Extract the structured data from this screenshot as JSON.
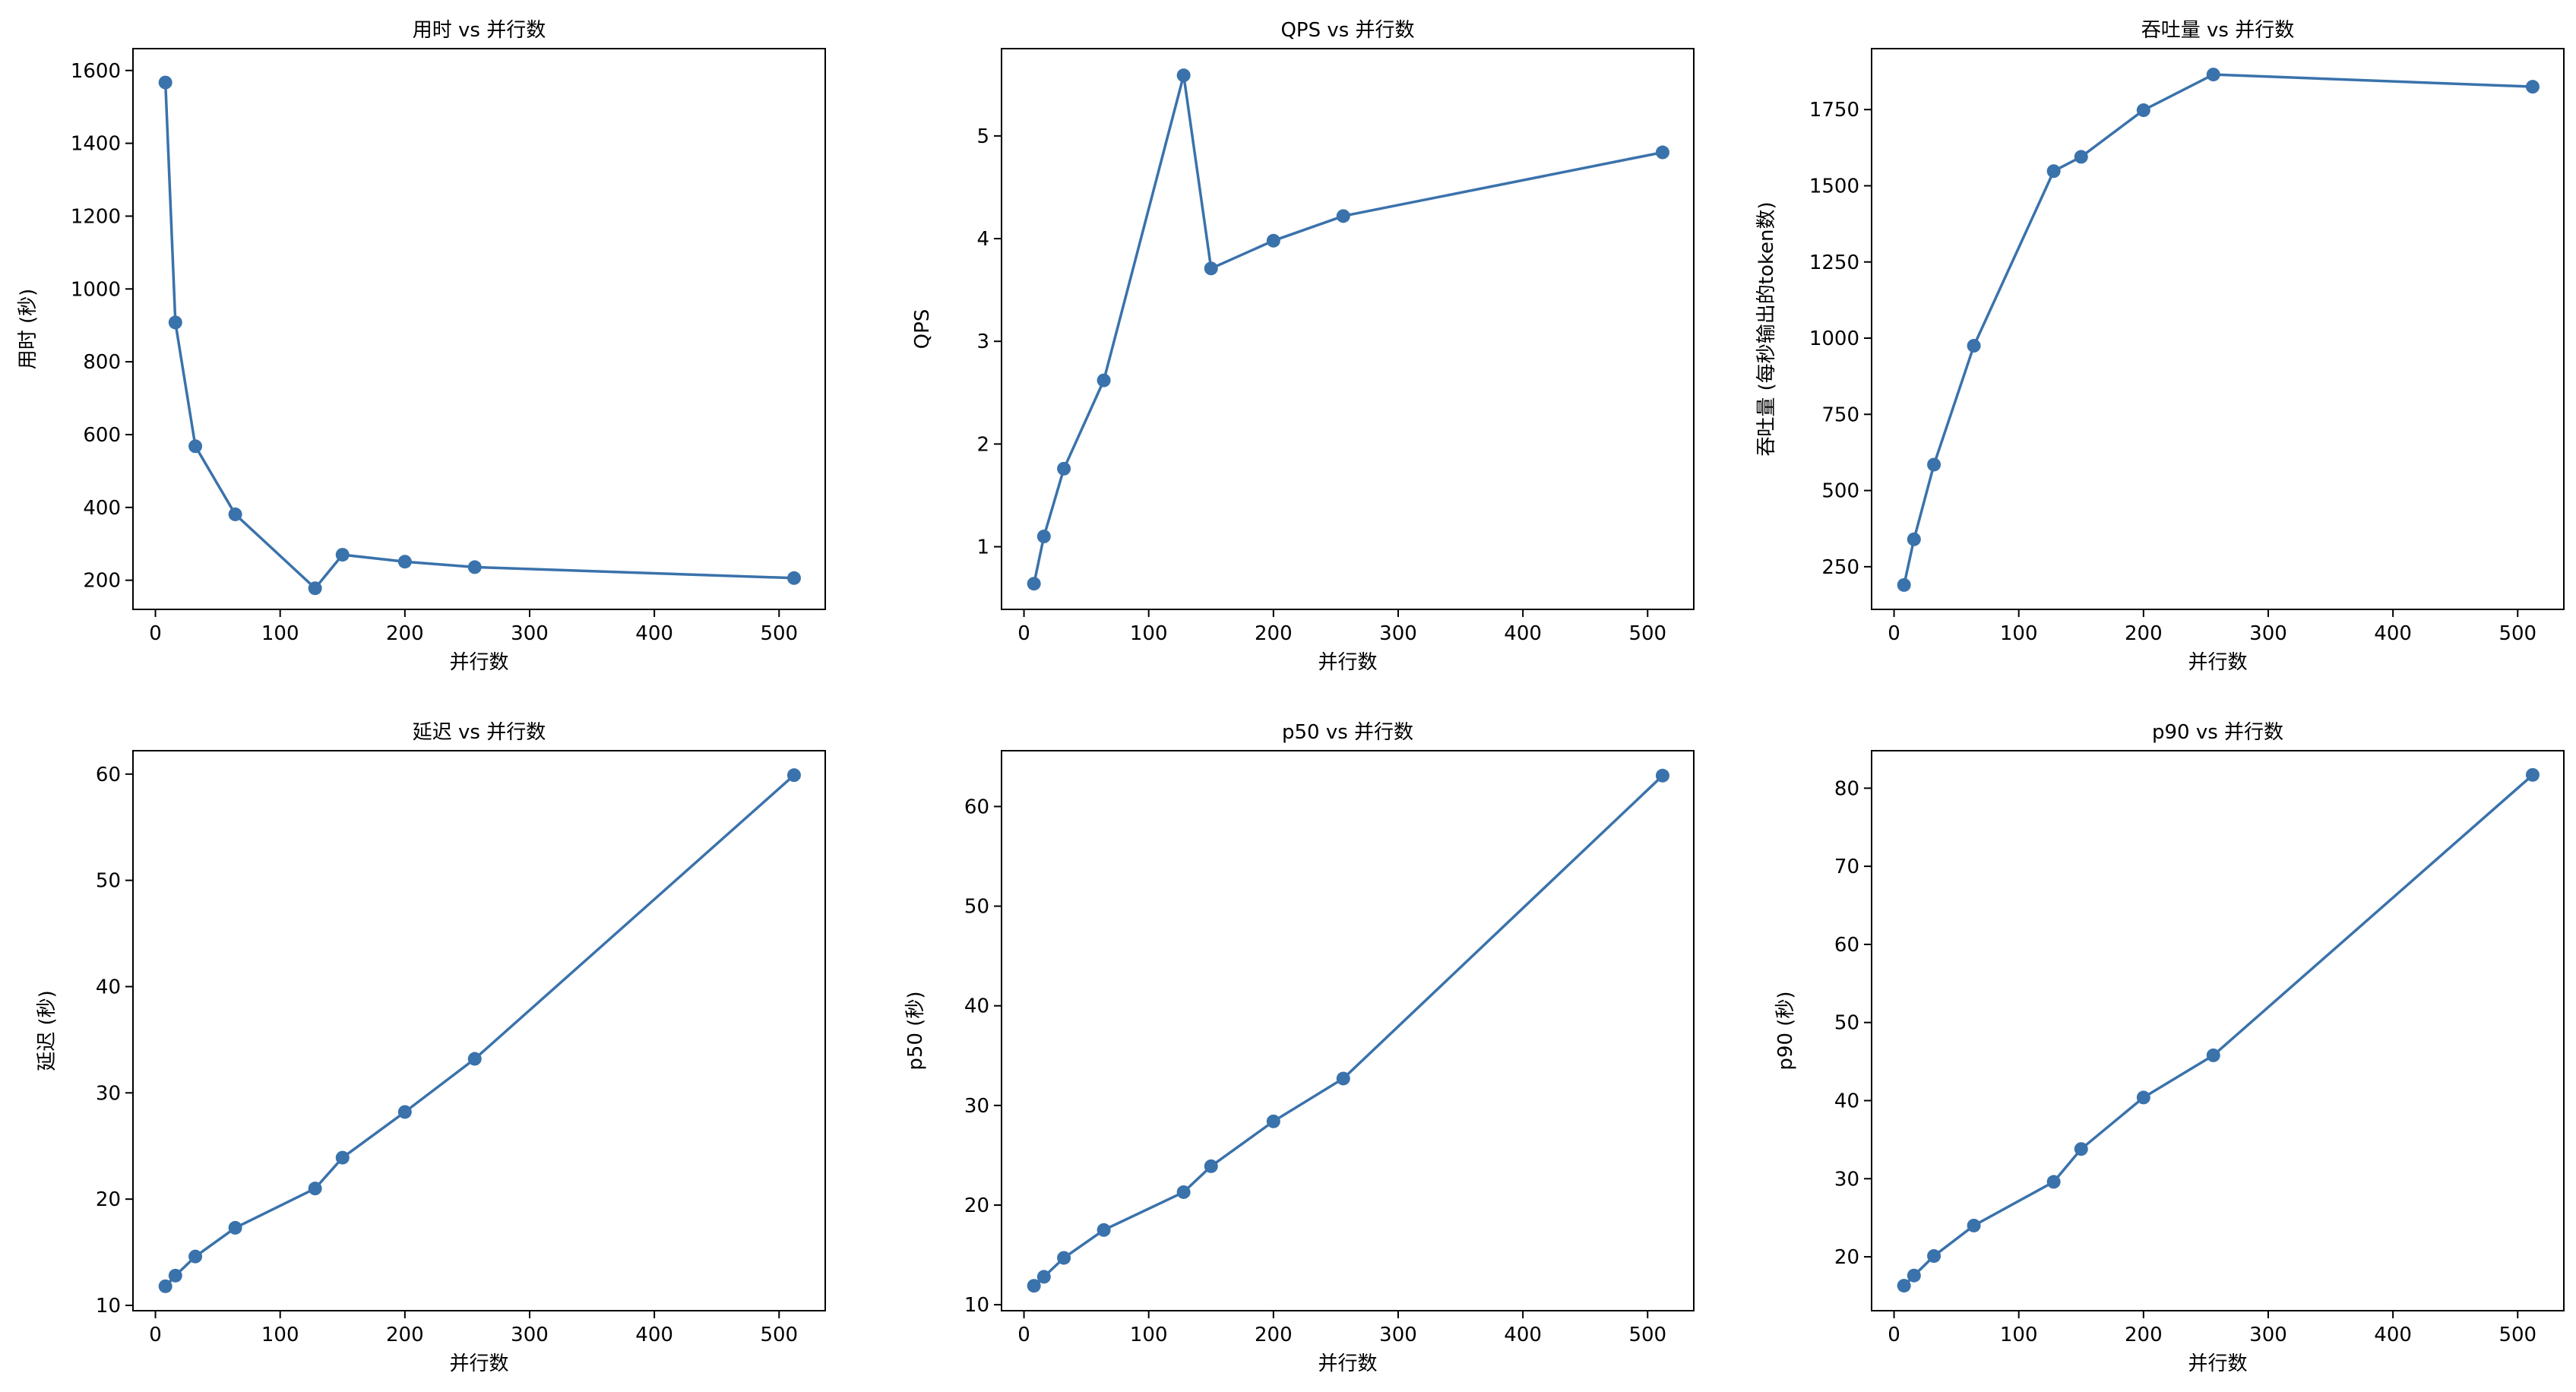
{
  "style": {
    "line_color": "#3a72ab",
    "marker_color": "#3a72ab"
  },
  "chart_data": [
    {
      "type": "line",
      "title": "用时 vs 并行数",
      "xlabel": "并行数",
      "ylabel": "用时 (秒)",
      "xlim": [
        -18,
        537
      ],
      "ylim": [
        120,
        1660
      ],
      "xticks": [
        0,
        100,
        200,
        300,
        400,
        500
      ],
      "yticks": [
        200,
        400,
        600,
        800,
        1000,
        1200,
        1400,
        1600
      ],
      "grid": false,
      "x": [
        8,
        16,
        32,
        64,
        128,
        150,
        200,
        256,
        512
      ],
      "y": [
        1567,
        908,
        568,
        381,
        178,
        270,
        251,
        236,
        206
      ]
    },
    {
      "type": "line",
      "title": "QPS vs 并行数",
      "xlabel": "并行数",
      "ylabel": "QPS",
      "xlim": [
        -18,
        537
      ],
      "ylim": [
        0.39,
        5.85
      ],
      "xticks": [
        0,
        100,
        200,
        300,
        400,
        500
      ],
      "yticks": [
        1,
        2,
        3,
        4,
        5
      ],
      "grid": false,
      "x": [
        8,
        16,
        32,
        64,
        128,
        150,
        200,
        256,
        512
      ],
      "y": [
        0.64,
        1.1,
        1.76,
        2.62,
        5.59,
        3.71,
        3.98,
        4.22,
        4.84
      ]
    },
    {
      "type": "line",
      "title": "吞吐量 vs 并行数",
      "xlabel": "并行数",
      "ylabel": "吞吐量 (每秒输出的token数)",
      "xlim": [
        -18,
        537
      ],
      "ylim": [
        110,
        1950
      ],
      "xticks": [
        0,
        100,
        200,
        300,
        400,
        500
      ],
      "yticks": [
        250,
        500,
        750,
        1000,
        1250,
        1500,
        1750
      ],
      "grid": false,
      "x": [
        8,
        16,
        32,
        64,
        128,
        150,
        200,
        256,
        512
      ],
      "y": [
        190,
        340,
        585,
        975,
        1548,
        1595,
        1748,
        1865,
        1825
      ]
    },
    {
      "type": "line",
      "title": "延迟 vs 并行数",
      "xlabel": "并行数",
      "ylabel": "延迟 (秒)",
      "xlim": [
        -18,
        537
      ],
      "ylim": [
        9.5,
        62.2
      ],
      "xticks": [
        0,
        100,
        200,
        300,
        400,
        500
      ],
      "yticks": [
        10,
        20,
        30,
        40,
        50,
        60
      ],
      "grid": false,
      "x": [
        8,
        16,
        32,
        64,
        128,
        150,
        200,
        256,
        512
      ],
      "y": [
        11.8,
        12.8,
        14.6,
        17.3,
        21.0,
        23.9,
        28.2,
        33.2,
        59.9
      ]
    },
    {
      "type": "line",
      "title": "p50 vs 并行数",
      "xlabel": "并行数",
      "ylabel": "p50 (秒)",
      "xlim": [
        -18,
        537
      ],
      "ylim": [
        9.4,
        65.6
      ],
      "xticks": [
        0,
        100,
        200,
        300,
        400,
        500
      ],
      "yticks": [
        10,
        20,
        30,
        40,
        50,
        60
      ],
      "grid": false,
      "x": [
        8,
        16,
        32,
        64,
        128,
        150,
        200,
        256,
        512
      ],
      "y": [
        11.9,
        12.8,
        14.7,
        17.5,
        21.3,
        23.9,
        28.4,
        32.7,
        63.1
      ]
    },
    {
      "type": "line",
      "title": "p90 vs 并行数",
      "xlabel": "并行数",
      "ylabel": "p90 (秒)",
      "xlim": [
        -18,
        537
      ],
      "ylim": [
        13.1,
        84.8
      ],
      "xticks": [
        0,
        100,
        200,
        300,
        400,
        500
      ],
      "yticks": [
        20,
        30,
        40,
        50,
        60,
        70,
        80
      ],
      "grid": false,
      "x": [
        8,
        16,
        32,
        64,
        128,
        150,
        200,
        256,
        512
      ],
      "y": [
        16.3,
        17.6,
        20.1,
        24.0,
        29.6,
        33.8,
        40.4,
        45.8,
        81.7
      ]
    }
  ]
}
